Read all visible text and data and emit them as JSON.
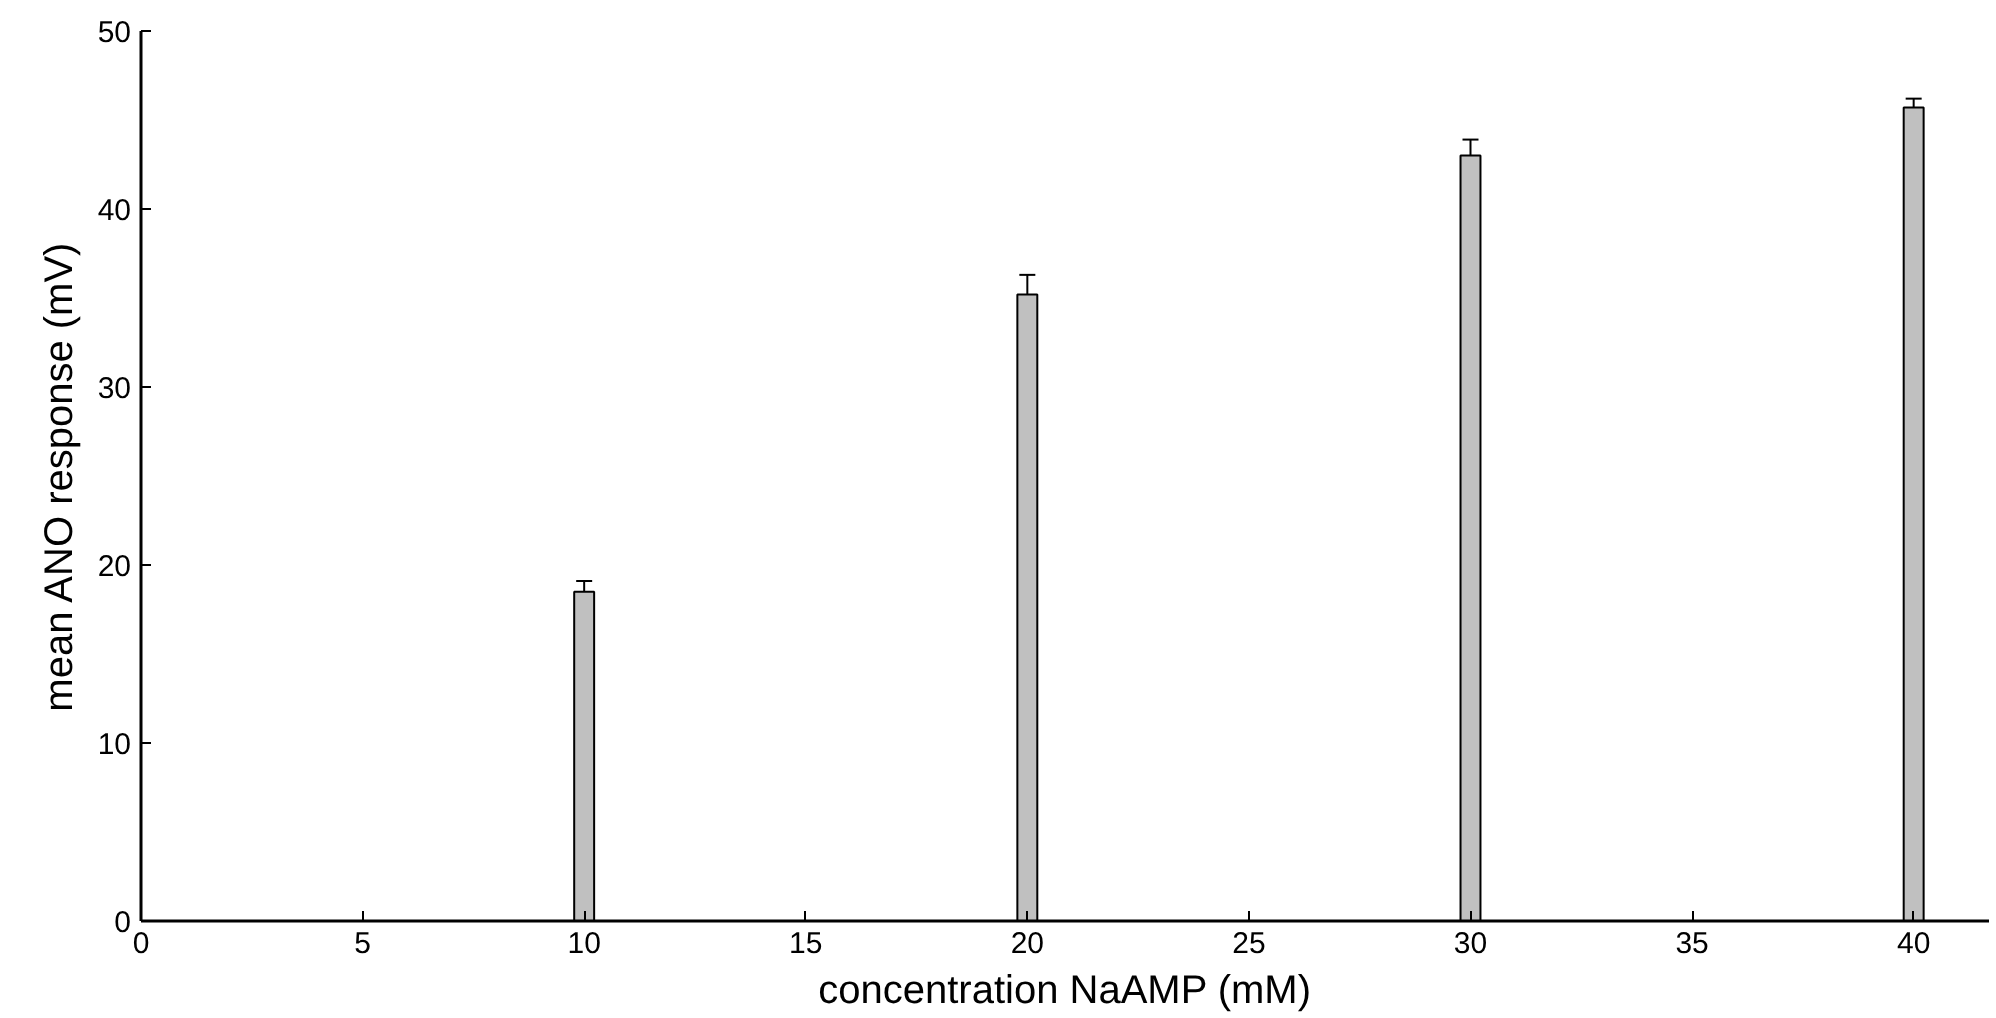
{
  "chart_data": {
    "type": "bar",
    "xlabel": "concentration NaAMP (mM)",
    "ylabel": "mean ANO response (mV)",
    "x": [
      10,
      20,
      30,
      40
    ],
    "values": [
      18.5,
      35.2,
      43.0,
      45.7
    ],
    "errors": [
      0.6,
      1.1,
      0.9,
      0.5
    ],
    "color": "#c0c0c0",
    "xlim": [
      0,
      41.7
    ],
    "ylim": [
      0,
      50
    ],
    "xticks": [
      0,
      5,
      10,
      15,
      20,
      25,
      30,
      35,
      40
    ],
    "yticks": [
      0,
      10,
      20,
      30,
      40,
      50
    ],
    "grid": false
  }
}
